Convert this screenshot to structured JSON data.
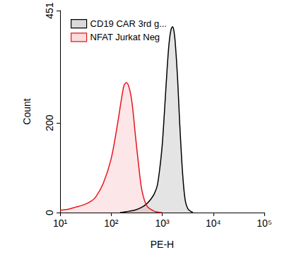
{
  "chart_data": {
    "type": "area",
    "x_label": "PE-H",
    "y_label": "Count",
    "log": "x",
    "grid": false,
    "legend": "upper left",
    "xlim": [
      10,
      100000
    ],
    "xticks": [
      {
        "value": 10,
        "label": "10¹"
      },
      {
        "value": 100,
        "label": "10²"
      },
      {
        "value": 1000,
        "label": "10³"
      },
      {
        "value": 10000,
        "label": "10⁴"
      },
      {
        "value": 100000,
        "label": "10⁵"
      }
    ],
    "ylim": [
      0,
      451
    ],
    "yticks": [
      0,
      200,
      451
    ],
    "series": [
      {
        "name": "CD19 CAR 3rd g...",
        "color": "#000000",
        "x": [
          150,
          200,
          300,
          400,
          500,
          600,
          700,
          800,
          900,
          1000,
          1100,
          1200,
          1300,
          1400,
          1500,
          1600,
          1700,
          1800,
          2000,
          2200,
          2500,
          2800,
          3200,
          4000
        ],
        "values": [
          0,
          2,
          6,
          12,
          20,
          30,
          42,
          60,
          100,
          150,
          220,
          290,
          350,
          390,
          410,
          415,
          405,
          380,
          300,
          200,
          90,
          30,
          8,
          0
        ]
      },
      {
        "name": "NFAT Jurkat Neg",
        "color": "#e8141b",
        "x": [
          10,
          15,
          20,
          30,
          40,
          50,
          70,
          100,
          130,
          160,
          180,
          200,
          230,
          260,
          300,
          350,
          400,
          500,
          700,
          1000
        ],
        "values": [
          5,
          8,
          12,
          18,
          25,
          35,
          65,
          120,
          190,
          255,
          285,
          290,
          275,
          240,
          170,
          100,
          50,
          15,
          3,
          0
        ]
      }
    ]
  }
}
